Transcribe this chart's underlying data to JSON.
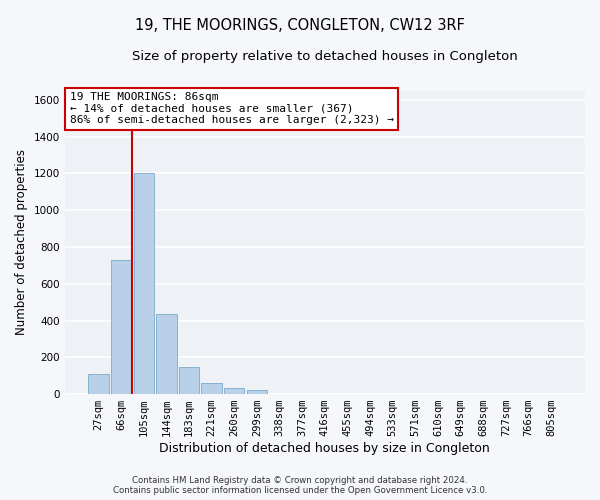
{
  "title": "19, THE MOORINGS, CONGLETON, CW12 3RF",
  "subtitle": "Size of property relative to detached houses in Congleton",
  "xlabel": "Distribution of detached houses by size in Congleton",
  "ylabel": "Number of detached properties",
  "categories": [
    "27sqm",
    "66sqm",
    "105sqm",
    "144sqm",
    "183sqm",
    "221sqm",
    "260sqm",
    "299sqm",
    "338sqm",
    "377sqm",
    "416sqm",
    "455sqm",
    "494sqm",
    "533sqm",
    "571sqm",
    "610sqm",
    "649sqm",
    "688sqm",
    "727sqm",
    "766sqm",
    "805sqm"
  ],
  "values": [
    110,
    730,
    1200,
    435,
    148,
    60,
    33,
    20,
    0,
    0,
    0,
    0,
    0,
    0,
    0,
    0,
    0,
    0,
    0,
    0,
    0
  ],
  "bar_color": "#b8d0e8",
  "bar_edge_color": "#7aaacb",
  "background_color": "#eef2f7",
  "grid_color": "#ffffff",
  "vline_color": "#cc0000",
  "vline_x_index": 1.5,
  "annotation_text": "19 THE MOORINGS: 86sqm\n← 14% of detached houses are smaller (367)\n86% of semi-detached houses are larger (2,323) →",
  "annotation_box_facecolor": "#ffffff",
  "annotation_box_edgecolor": "#cc0000",
  "ylim": [
    0,
    1650
  ],
  "yticks": [
    0,
    200,
    400,
    600,
    800,
    1000,
    1200,
    1400,
    1600
  ],
  "footer": "Contains HM Land Registry data © Crown copyright and database right 2024.\nContains public sector information licensed under the Open Government Licence v3.0.",
  "title_fontsize": 10.5,
  "subtitle_fontsize": 9.5,
  "xlabel_fontsize": 9,
  "ylabel_fontsize": 8.5,
  "tick_fontsize": 7.5,
  "annotation_fontsize": 8,
  "fig_facecolor": "#f5f7fa"
}
